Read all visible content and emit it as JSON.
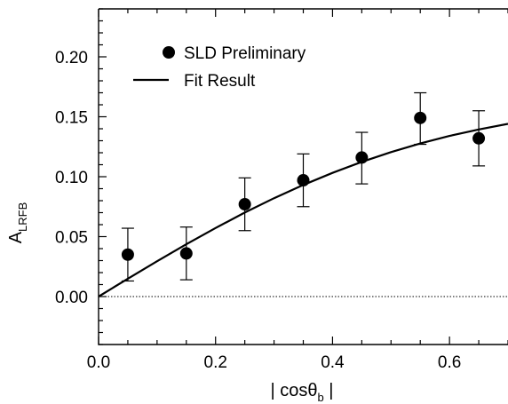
{
  "chart_data": {
    "type": "scatter",
    "title": "",
    "xlabel": "| cosθb |",
    "xlabel_main": "| cosθ",
    "xlabel_sub": "b",
    "xlabel_end": " |",
    "ylabel": "ALRFB",
    "ylabel_main": "A",
    "ylabel_sub": "LRFB",
    "xlim": [
      0.0,
      0.7
    ],
    "ylim": [
      -0.04,
      0.24
    ],
    "x_ticks": [
      "0.0",
      "0.2",
      "0.4",
      "0.6"
    ],
    "x_tick_values": [
      0.0,
      0.2,
      0.4,
      0.6
    ],
    "y_ticks": [
      "0.00",
      "0.05",
      "0.10",
      "0.15",
      "0.20"
    ],
    "y_tick_values": [
      0.0,
      0.05,
      0.1,
      0.15,
      0.2
    ],
    "grid": false,
    "legend_position": "top-left",
    "series": [
      {
        "name": "SLD Preliminary",
        "kind": "points-with-errorbars",
        "color": "#000000",
        "x": [
          0.05,
          0.15,
          0.25,
          0.35,
          0.45,
          0.55,
          0.65
        ],
        "y": [
          0.035,
          0.036,
          0.077,
          0.097,
          0.116,
          0.149,
          0.132
        ],
        "err_low": [
          0.022,
          0.022,
          0.022,
          0.022,
          0.022,
          0.022,
          0.023
        ],
        "err_high": [
          0.022,
          0.022,
          0.022,
          0.022,
          0.021,
          0.021,
          0.023
        ]
      },
      {
        "name": "Fit Result",
        "kind": "line",
        "color": "#000000",
        "x": [
          0.0,
          0.05,
          0.1,
          0.15,
          0.2,
          0.25,
          0.3,
          0.35,
          0.4,
          0.45,
          0.5,
          0.55,
          0.6,
          0.65,
          0.7
        ],
        "y": [
          0.0,
          0.0149,
          0.0295,
          0.0436,
          0.0572,
          0.0701,
          0.0821,
          0.0931,
          0.1032,
          0.1124,
          0.1205,
          0.1277,
          0.134,
          0.1394,
          0.1441
        ]
      },
      {
        "name": "",
        "kind": "reference-line",
        "style": "dotted",
        "y_value": 0.0
      }
    ]
  }
}
